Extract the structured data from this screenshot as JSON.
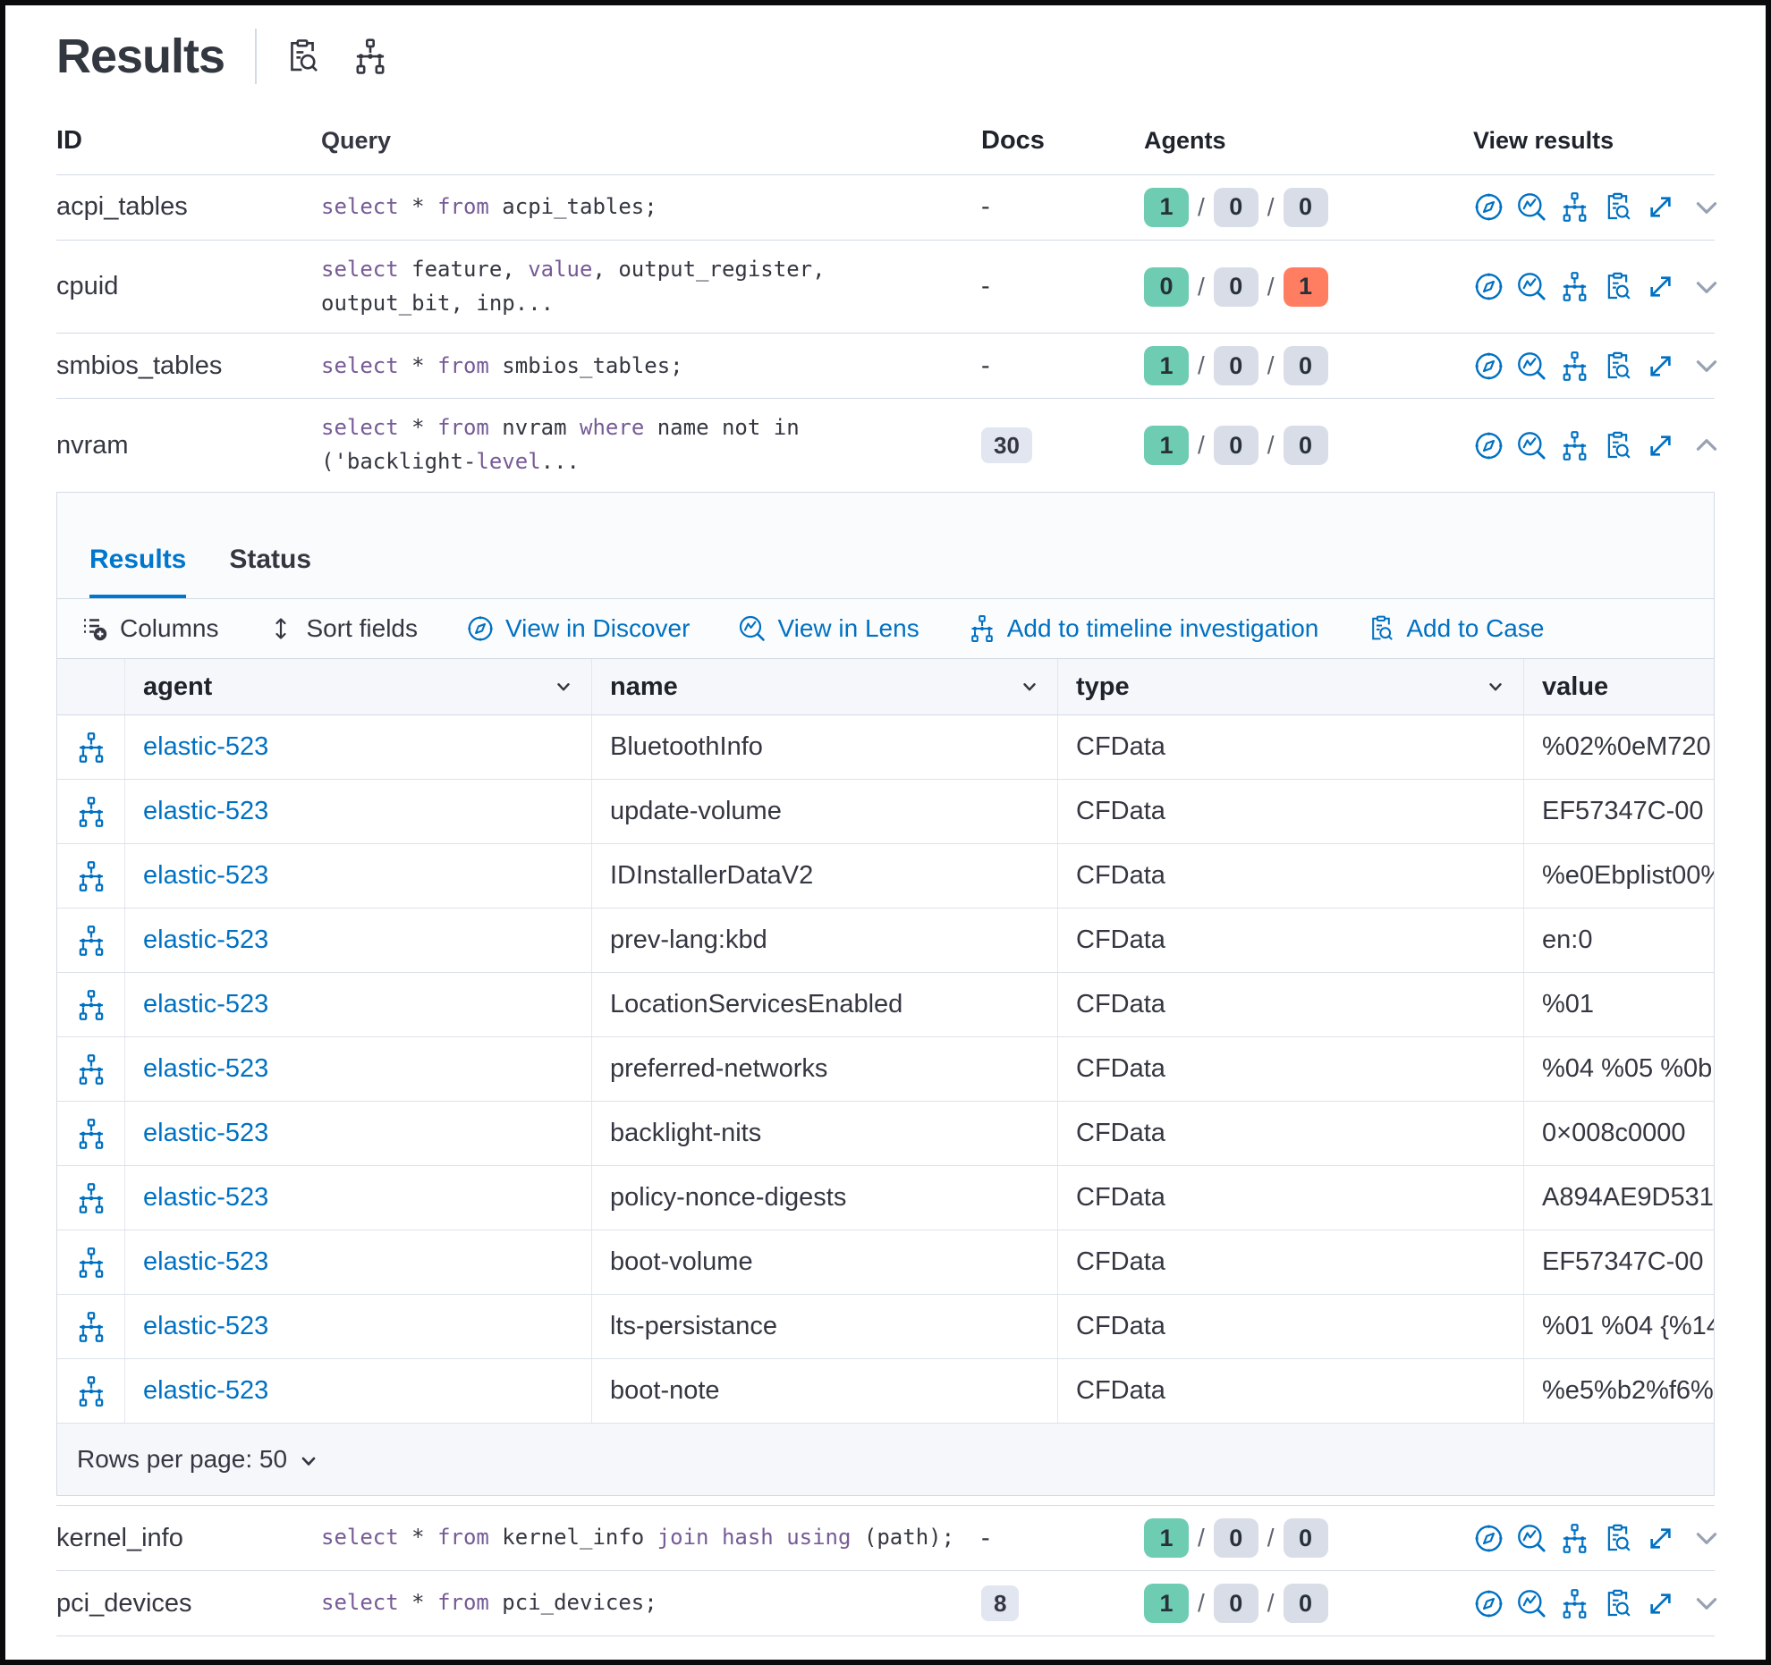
{
  "header": {
    "title": "Results"
  },
  "queries": {
    "columns": [
      "ID",
      "Query",
      "Docs",
      "Agents",
      "View results"
    ],
    "rows": [
      {
        "id": "acpi_tables",
        "query": [
          {
            "t": "select",
            "kw": true
          },
          {
            "t": " * ",
            "kw": false
          },
          {
            "t": "from",
            "kw": true
          },
          {
            "t": " acpi_tables;",
            "kw": false
          }
        ],
        "docs": "-",
        "docs_badge": false,
        "agents": [
          {
            "v": "1",
            "c": "green"
          },
          {
            "v": "0",
            "c": "gray"
          },
          {
            "v": "0",
            "c": "gray"
          }
        ],
        "expanded": false,
        "after_panel": false
      },
      {
        "id": "cpuid",
        "query": [
          {
            "t": "select",
            "kw": true
          },
          {
            "t": " feature, ",
            "kw": false
          },
          {
            "t": "value",
            "kw": true
          },
          {
            "t": ", output_register,\noutput_bit, inp...",
            "kw": false
          }
        ],
        "docs": "-",
        "docs_badge": false,
        "agents": [
          {
            "v": "0",
            "c": "green"
          },
          {
            "v": "0",
            "c": "gray"
          },
          {
            "v": "1",
            "c": "red"
          }
        ],
        "expanded": false,
        "after_panel": false
      },
      {
        "id": "smbios_tables",
        "query": [
          {
            "t": "select",
            "kw": true
          },
          {
            "t": " * ",
            "kw": false
          },
          {
            "t": "from",
            "kw": true
          },
          {
            "t": " smbios_tables;",
            "kw": false
          }
        ],
        "docs": "-",
        "docs_badge": false,
        "agents": [
          {
            "v": "1",
            "c": "green"
          },
          {
            "v": "0",
            "c": "gray"
          },
          {
            "v": "0",
            "c": "gray"
          }
        ],
        "expanded": false,
        "after_panel": false
      },
      {
        "id": "nvram",
        "query": [
          {
            "t": "select",
            "kw": true
          },
          {
            "t": " * ",
            "kw": false
          },
          {
            "t": "from",
            "kw": true
          },
          {
            "t": " nvram ",
            "kw": false
          },
          {
            "t": "where",
            "kw": true
          },
          {
            "t": " name not in\n('backlight-",
            "kw": false
          },
          {
            "t": "level",
            "kw": true
          },
          {
            "t": "...",
            "kw": false
          }
        ],
        "docs": "30",
        "docs_badge": true,
        "agents": [
          {
            "v": "1",
            "c": "green"
          },
          {
            "v": "0",
            "c": "gray"
          },
          {
            "v": "0",
            "c": "gray"
          }
        ],
        "expanded": true,
        "after_panel": false
      },
      {
        "id": "kernel_info",
        "query": [
          {
            "t": "select",
            "kw": true
          },
          {
            "t": " * ",
            "kw": false
          },
          {
            "t": "from",
            "kw": true
          },
          {
            "t": " kernel_info ",
            "kw": false
          },
          {
            "t": "join",
            "kw": true
          },
          {
            "t": " ",
            "kw": false
          },
          {
            "t": "hash",
            "kw": true
          },
          {
            "t": " ",
            "kw": false
          },
          {
            "t": "using",
            "kw": true
          },
          {
            "t": " (path);",
            "kw": false
          }
        ],
        "docs": "-",
        "docs_badge": false,
        "agents": [
          {
            "v": "1",
            "c": "green"
          },
          {
            "v": "0",
            "c": "gray"
          },
          {
            "v": "0",
            "c": "gray"
          }
        ],
        "expanded": false,
        "after_panel": true
      },
      {
        "id": "pci_devices",
        "query": [
          {
            "t": "select",
            "kw": true
          },
          {
            "t": " * ",
            "kw": false
          },
          {
            "t": "from",
            "kw": true
          },
          {
            "t": " pci_devices;",
            "kw": false
          }
        ],
        "docs": "8",
        "docs_badge": true,
        "agents": [
          {
            "v": "1",
            "c": "green"
          },
          {
            "v": "0",
            "c": "gray"
          },
          {
            "v": "0",
            "c": "gray"
          }
        ],
        "expanded": false,
        "after_panel": true
      }
    ]
  },
  "panel": {
    "tabs": [
      {
        "label": "Results",
        "active": true
      },
      {
        "label": "Status",
        "active": false
      }
    ],
    "toolbar": {
      "columns": "Columns",
      "sort": "Sort fields",
      "discover": "View in Discover",
      "lens": "View in Lens",
      "timeline": "Add to timeline investigation",
      "case": "Add to Case"
    },
    "grid": {
      "columns": [
        "agent",
        "name",
        "type",
        "value"
      ],
      "rows": [
        {
          "agent": "elastic-523",
          "name": "BluetoothInfo",
          "type": "CFData",
          "value": "%02%0eM720"
        },
        {
          "agent": "elastic-523",
          "name": "update-volume",
          "type": "CFData",
          "value": "EF57347C-00"
        },
        {
          "agent": "elastic-523",
          "name": "IDInstallerDataV2",
          "type": "CFData",
          "value": "%e0Ebplist00%"
        },
        {
          "agent": "elastic-523",
          "name": "prev-lang:kbd",
          "type": "CFData",
          "value": "en:0"
        },
        {
          "agent": "elastic-523",
          "name": "LocationServicesEnabled",
          "type": "CFData",
          "value": "%01"
        },
        {
          "agent": "elastic-523",
          "name": "preferred-networks",
          "type": "CFData",
          "value": "%04 %05 %0b"
        },
        {
          "agent": "elastic-523",
          "name": "backlight-nits",
          "type": "CFData",
          "value": "0×008c0000"
        },
        {
          "agent": "elastic-523",
          "name": "policy-nonce-digests",
          "type": "CFData",
          "value": "A894AE9D531"
        },
        {
          "agent": "elastic-523",
          "name": "boot-volume",
          "type": "CFData",
          "value": "EF57347C-00"
        },
        {
          "agent": "elastic-523",
          "name": "lts-persistance",
          "type": "CFData",
          "value": "%01 %04 {%14"
        },
        {
          "agent": "elastic-523",
          "name": "boot-note",
          "type": "CFData",
          "value": "%e5%b2%f6%"
        }
      ],
      "rows_per_page": "Rows per page: 50"
    }
  }
}
